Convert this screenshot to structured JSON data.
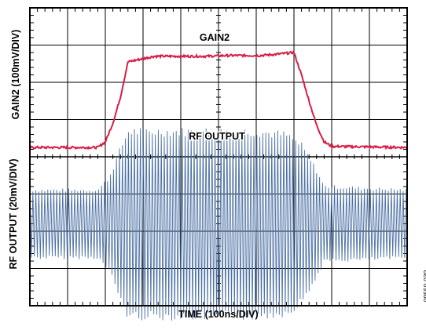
{
  "chart_data": {
    "type": "line",
    "xlabel": "TIME (100ns/DIV)",
    "ylabels": [
      "GAIN2 (100mV/DIV)",
      "RF OUTPUT (20mV/DIV)"
    ],
    "grid": true,
    "divisions": {
      "x": 10,
      "y": 8
    },
    "figure_id": "09550-039",
    "series": [
      {
        "name": "GAIN2",
        "color": "#d81e46",
        "x_ns": [
          0,
          180,
          200,
          220,
          240,
          260,
          330,
          400,
          470,
          520,
          560,
          610,
          650,
          700,
          720,
          740,
          760,
          780,
          800,
          1000
        ],
        "y_div": [
          4.25,
          4.25,
          4.4,
          4.9,
          5.6,
          6.55,
          6.7,
          6.7,
          6.7,
          6.72,
          6.72,
          6.72,
          6.75,
          6.8,
          6.2,
          5.5,
          4.85,
          4.4,
          4.28,
          4.25
        ],
        "label": "GAIN2"
      },
      {
        "name": "RF OUTPUT",
        "color": "#4a6fa2",
        "type": "rf-envelope",
        "x_ns": [
          0,
          180,
          210,
          240,
          260,
          600,
          680,
          720,
          760,
          780,
          1000
        ],
        "envelope_div": [
          0.95,
          0.95,
          1.3,
          2.1,
          2.6,
          2.6,
          2.5,
          2.2,
          1.5,
          1.05,
          0.95
        ],
        "center_div": 2.2,
        "label": "RF OUTPUT"
      }
    ]
  }
}
